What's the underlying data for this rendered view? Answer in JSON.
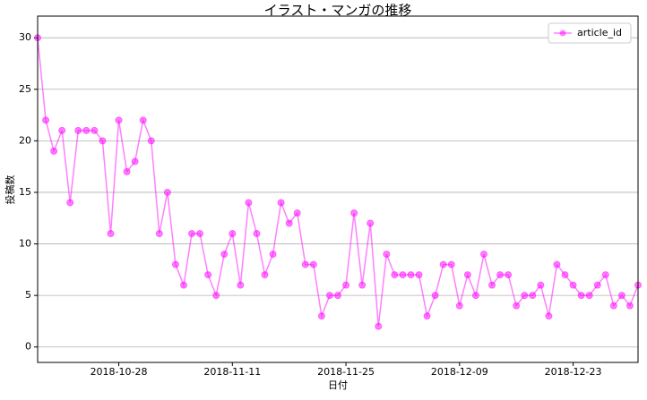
{
  "chart_data": {
    "type": "line",
    "title": "イラスト・マンガの推移",
    "x_label": "日付",
    "y_label": "投稿数",
    "x": [
      "2018-10-18",
      "2018-10-19",
      "2018-10-20",
      "2018-10-21",
      "2018-10-22",
      "2018-10-23",
      "2018-10-24",
      "2018-10-25",
      "2018-10-26",
      "2018-10-27",
      "2018-10-28",
      "2018-10-29",
      "2018-10-30",
      "2018-10-31",
      "2018-11-01",
      "2018-11-02",
      "2018-11-03",
      "2018-11-04",
      "2018-11-05",
      "2018-11-06",
      "2018-11-07",
      "2018-11-08",
      "2018-11-09",
      "2018-11-10",
      "2018-11-11",
      "2018-11-12",
      "2018-11-13",
      "2018-11-14",
      "2018-11-15",
      "2018-11-16",
      "2018-11-17",
      "2018-11-18",
      "2018-11-19",
      "2018-11-20",
      "2018-11-21",
      "2018-11-22",
      "2018-11-23",
      "2018-11-24",
      "2018-11-25",
      "2018-11-26",
      "2018-11-27",
      "2018-11-28",
      "2018-11-29",
      "2018-11-30",
      "2018-12-01",
      "2018-12-02",
      "2018-12-03",
      "2018-12-04",
      "2018-12-05",
      "2018-12-06",
      "2018-12-07",
      "2018-12-08",
      "2018-12-09",
      "2018-12-10",
      "2018-12-11",
      "2018-12-12",
      "2018-12-13",
      "2018-12-14",
      "2018-12-15",
      "2018-12-16",
      "2018-12-17",
      "2018-12-18",
      "2018-12-19",
      "2018-12-20",
      "2018-12-21",
      "2018-12-22",
      "2018-12-23",
      "2018-12-24",
      "2018-12-25",
      "2018-12-26",
      "2018-12-27",
      "2018-12-28",
      "2018-12-29",
      "2018-12-30",
      "2018-12-31"
    ],
    "series": [
      {
        "name": "article_id",
        "color": "#ff00ff",
        "values": [
          30,
          22,
          19,
          21,
          14,
          21,
          21,
          21,
          20,
          11,
          22,
          17,
          18,
          22,
          20,
          11,
          15,
          8,
          6,
          11,
          11,
          7,
          5,
          9,
          11,
          6,
          14,
          11,
          7,
          9,
          14,
          12,
          13,
          8,
          8,
          3,
          5,
          5,
          6,
          13,
          6,
          12,
          2,
          9,
          7,
          7,
          7,
          7,
          3,
          5,
          8,
          8,
          4,
          7,
          5,
          9,
          6,
          7,
          7,
          4,
          5,
          5,
          6,
          3,
          8,
          7,
          6,
          5,
          5,
          6,
          7,
          4,
          5,
          4,
          6
        ]
      }
    ],
    "xlim": [
      "2018-10-18",
      "2018-12-31"
    ],
    "xticks": [
      "2018-10-28",
      "2018-11-11",
      "2018-11-25",
      "2018-12-09",
      "2018-12-23"
    ],
    "ylim": [
      -1.5,
      32.1
    ],
    "yticks": [
      0,
      5,
      10,
      15,
      20,
      25,
      30
    ],
    "grid": "y",
    "legend": "upper right"
  }
}
